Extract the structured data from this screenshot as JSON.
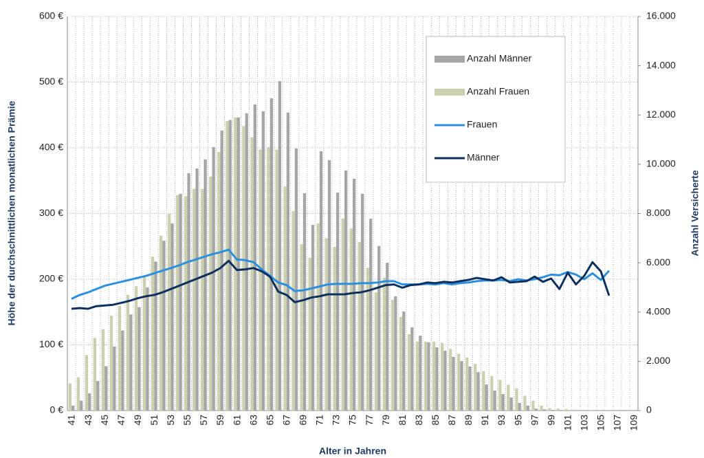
{
  "chart_data": {
    "type": "bar-line",
    "x_label": "Alter in Jahren",
    "y_label": "Höhe der durchschnittlichen monatlichen Prämie",
    "y2_label": "Anzahl Versicherte",
    "categories": [
      "41",
      null,
      "43",
      null,
      "45",
      null,
      "47",
      null,
      "49",
      null,
      "51",
      null,
      "53",
      null,
      "55",
      null,
      "57",
      null,
      "59",
      null,
      "61",
      null,
      "63",
      null,
      "65",
      null,
      "67",
      null,
      "69",
      null,
      "71",
      null,
      "73",
      null,
      "75",
      null,
      "77",
      null,
      "79",
      null,
      "81",
      null,
      "83",
      null,
      "85",
      null,
      "87",
      null,
      "89",
      null,
      "91",
      null,
      "93",
      null,
      "95",
      null,
      "97",
      null,
      "99",
      null,
      "101",
      null,
      "103",
      null,
      "105",
      null,
      "107",
      null,
      "109"
    ],
    "ylim": [
      0,
      600
    ],
    "yticks": [
      {
        "value": 0,
        "label": "0 €"
      },
      {
        "value": 100,
        "label": "100 €"
      },
      {
        "value": 200,
        "label": "200 €"
      },
      {
        "value": 300,
        "label": "300 €"
      },
      {
        "value": 400,
        "label": "400 €"
      },
      {
        "value": 500,
        "label": "500 €"
      },
      {
        "value": 600,
        "label": "600 €"
      }
    ],
    "y2lim": [
      0,
      16000
    ],
    "y2ticks": [
      0,
      {
        "value": 2000,
        "label": "2.000"
      },
      {
        "value": 4000,
        "label": "4.000"
      },
      {
        "value": 6000,
        "label": "6.000"
      },
      {
        "value": 8000,
        "label": "8.000"
      },
      {
        "value": 10000,
        "label": "10.000"
      },
      {
        "value": 12000,
        "label": "12.000"
      },
      {
        "value": 14000,
        "label": "14.000"
      },
      {
        "value": 16000,
        "label": "16.000"
      }
    ],
    "grid": true,
    "legend": "upper right",
    "series": [
      {
        "name": "Anzahl Männer",
        "kind": "bar",
        "axis": "y2",
        "color": "#a6a6a6",
        "values": [
          200,
          400,
          700,
          1200,
          1800,
          2600,
          3250,
          3900,
          4200,
          5000,
          6050,
          6900,
          7600,
          8800,
          9640,
          9830,
          10200,
          10700,
          11370,
          11800,
          11900,
          12070,
          12430,
          12150,
          12680,
          13380,
          12100,
          10640,
          8830,
          7540,
          10530,
          10170,
          8850,
          9750,
          9410,
          8800,
          7790,
          6680,
          6000,
          4640,
          4020,
          3380,
          3040,
          2770,
          2570,
          2430,
          2180,
          2010,
          1790,
          1560,
          1060,
          810,
          670,
          530,
          310,
          200,
          80,
          50,
          30,
          20,
          10,
          5,
          5,
          0,
          0,
          0,
          0,
          0,
          0
        ]
      },
      {
        "name": "Anzahl Frauen",
        "kind": "bar",
        "axis": "y2",
        "color": "#c9d1ae",
        "values": [
          1100,
          1350,
          2250,
          2950,
          3300,
          3850,
          4250,
          4700,
          5050,
          5450,
          6250,
          7100,
          8000,
          8750,
          8700,
          9000,
          9000,
          9500,
          10500,
          11750,
          11900,
          11550,
          11100,
          10600,
          10700,
          10600,
          9100,
          8100,
          6750,
          6200,
          7600,
          7000,
          6650,
          7800,
          7400,
          6850,
          5800,
          4800,
          5400,
          4500,
          3800,
          3100,
          2800,
          2800,
          2800,
          2750,
          2500,
          2300,
          2150,
          1900,
          1600,
          1400,
          1250,
          1050,
          900,
          600,
          400,
          200,
          100,
          80,
          60,
          40,
          30,
          20,
          10,
          5,
          0,
          0,
          0
        ]
      },
      {
        "name": "Frauen",
        "kind": "line",
        "axis": "y",
        "color": "#2b8fe0",
        "values": [
          170,
          176,
          180,
          185,
          190,
          193,
          196,
          199,
          202,
          205,
          209,
          213,
          217,
          221,
          226,
          230,
          234,
          238,
          241,
          245,
          230,
          229,
          226,
          215,
          205,
          195,
          191,
          182,
          183,
          186,
          189,
          192,
          193,
          193,
          193,
          194,
          194,
          195,
          197,
          197,
          192,
          192,
          192,
          193,
          192,
          194,
          192,
          194,
          195,
          197,
          198,
          198,
          199,
          197,
          200,
          198,
          200,
          203,
          207,
          206,
          211,
          207,
          200,
          209,
          199,
          213,
          null,
          null,
          null
        ]
      },
      {
        "name": "Männer",
        "kind": "line",
        "axis": "y",
        "color": "#0d2f5e",
        "values": [
          155,
          156,
          155,
          159,
          160,
          161,
          164,
          167,
          171,
          174,
          176,
          180,
          185,
          190,
          195,
          200,
          205,
          210,
          217,
          228,
          214,
          215,
          217,
          212,
          204,
          181,
          176,
          165,
          168,
          172,
          174,
          177,
          177,
          177,
          179,
          180,
          183,
          187,
          191,
          192,
          187,
          191,
          192,
          195,
          194,
          196,
          195,
          197,
          199,
          202,
          200,
          198,
          203,
          195,
          196,
          197,
          204,
          196,
          201,
          185,
          210,
          192,
          205,
          226,
          212,
          175,
          null,
          null,
          null
        ]
      }
    ]
  }
}
